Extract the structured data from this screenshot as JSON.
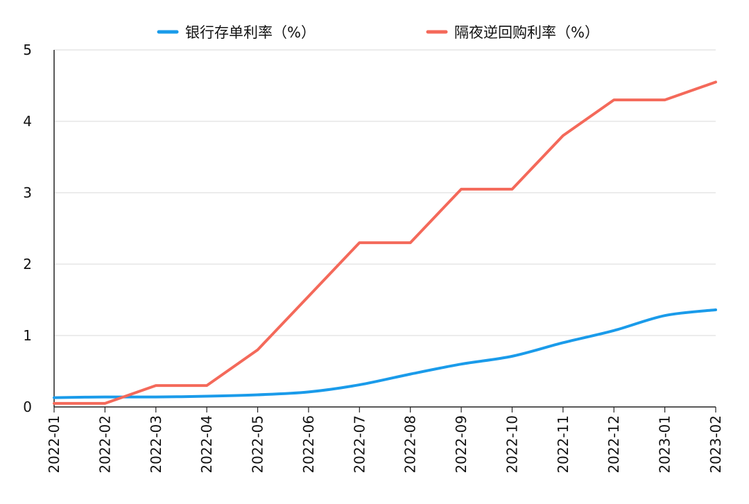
{
  "chart_data": {
    "type": "line",
    "title": "",
    "xlabel": "",
    "ylabel": "",
    "categories": [
      "2022-01",
      "2022-02",
      "2022-03",
      "2022-04",
      "2022-05",
      "2022-06",
      "2022-07",
      "2022-08",
      "2022-09",
      "2022-10",
      "2022-11",
      "2022-12",
      "2023-01",
      "2023-02"
    ],
    "ylim": [
      0,
      5
    ],
    "yticks": [
      0,
      1,
      2,
      3,
      4,
      5
    ],
    "grid": true,
    "legend_position": "top",
    "series": [
      {
        "name": "银行存单利率（%）",
        "color": "#1A9BEA",
        "values": [
          0.13,
          0.14,
          0.14,
          0.15,
          0.17,
          0.21,
          0.31,
          0.46,
          0.6,
          0.71,
          0.9,
          1.07,
          1.28,
          1.36
        ]
      },
      {
        "name": "隔夜逆回购利率（%）",
        "color": "#F4695A",
        "values": [
          0.05,
          0.05,
          0.3,
          0.3,
          0.8,
          1.55,
          2.3,
          2.3,
          3.05,
          3.05,
          3.8,
          4.3,
          4.3,
          4.55
        ]
      }
    ]
  }
}
